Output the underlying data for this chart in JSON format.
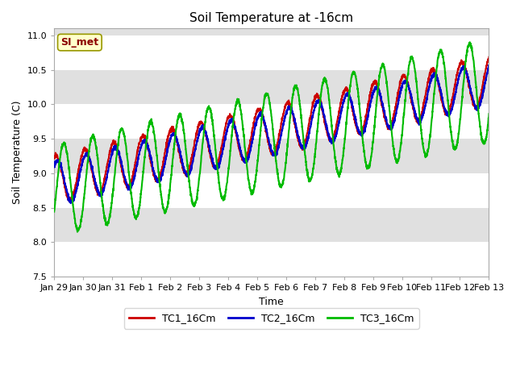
{
  "title": "Soil Temperature at -16cm",
  "xlabel": "Time",
  "ylabel": "Soil Temperature (C)",
  "ylim": [
    7.5,
    11.1
  ],
  "xlim": [
    0,
    360
  ],
  "background_color": "#ffffff",
  "plot_bg_color": "#e8e8e8",
  "stripe_colors": [
    "#ffffff",
    "#e0e0e0"
  ],
  "tc1_color": "#cc0000",
  "tc2_color": "#0000cc",
  "tc3_color": "#00bb00",
  "line_width": 1.5,
  "tick_labels": [
    "Jan 29",
    "Jan 30",
    "Jan 31",
    "Feb 1",
    "Feb 2",
    "Feb 3",
    "Feb 4",
    "Feb 5",
    "Feb 6",
    "Feb 7",
    "Feb 8",
    "Feb 9",
    "Feb 10",
    "Feb 11",
    "Feb 12",
    "Feb 13"
  ],
  "annotation_text": "SI_met",
  "annotation_bg": "#ffffcc",
  "annotation_border": "#999900",
  "legend_labels": [
    "TC1_16Cm",
    "TC2_16Cm",
    "TC3_16Cm"
  ]
}
